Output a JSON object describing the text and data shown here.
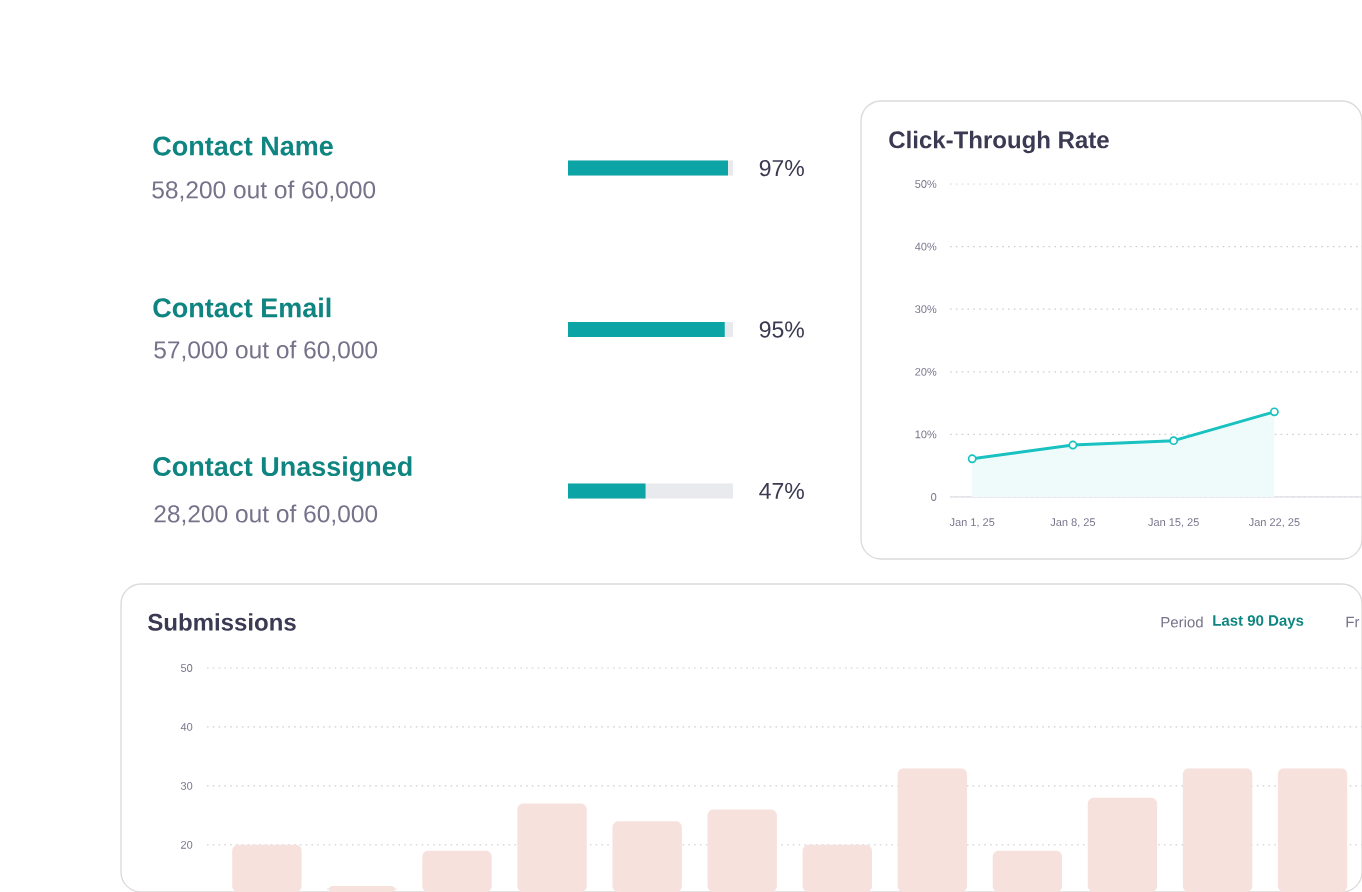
{
  "chart_data": [
    {
      "type": "bar",
      "orientation": "horizontal",
      "categories": [
        "Contact Name",
        "Contact Email",
        "Contact Unassigned"
      ],
      "values": [
        97,
        95,
        47
      ],
      "value_labels": [
        "97%",
        "95%",
        "47%"
      ],
      "annotations": [
        "58,200 out of 60,000",
        "57,000 out of 60,000",
        "28,200 out of 60,000"
      ],
      "color": "#0ca4a4",
      "xlim": [
        0,
        100
      ]
    },
    {
      "type": "area",
      "title": "Click-Through Rate",
      "categories": [
        "Jan 1, 25",
        "Jan 8, 25",
        "Jan 15, 25",
        "Jan 22, 25"
      ],
      "values": [
        6.1,
        8.3,
        9,
        13.6
      ],
      "color": "#19c1c1",
      "ylim": [
        0,
        50
      ],
      "yticks": [
        0,
        {
          "value": 10,
          "label": "10%"
        },
        {
          "value": 20,
          "label": "20%"
        },
        {
          "value": 30,
          "label": "30%"
        },
        {
          "value": 40,
          "label": "40%"
        },
        {
          "value": 50,
          "label": "50%"
        }
      ],
      "grid": "y",
      "marker": "circle"
    },
    {
      "type": "bar",
      "title": "Submissions",
      "annotations": [
        "Period",
        "Last 90 Days",
        "Fr"
      ],
      "categories": [
        null,
        null,
        null,
        null,
        null,
        null,
        null,
        null,
        null,
        null,
        null,
        null
      ],
      "values": [
        20,
        13,
        19,
        27,
        24,
        26,
        20,
        33,
        19,
        28,
        33,
        33
      ],
      "color": "#f7e1dd",
      "ylim": [
        12,
        50
      ],
      "yticks": [
        20,
        30,
        40,
        50
      ],
      "grid": "y"
    }
  ]
}
